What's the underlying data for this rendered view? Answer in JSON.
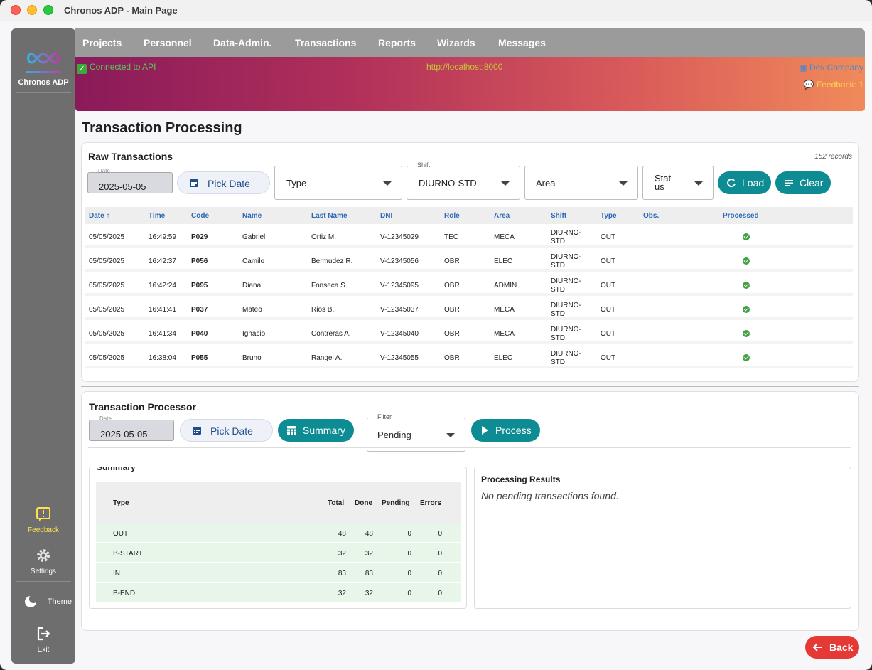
{
  "window": {
    "title": "Chronos ADP - Main Page"
  },
  "sidebar": {
    "brand": "Chronos ADP",
    "items": [
      {
        "label": "Feedback",
        "icon": "feedback-icon"
      },
      {
        "label": "Settings",
        "icon": "gear-icon"
      },
      {
        "label": "Theme",
        "icon": "moon-icon"
      },
      {
        "label": "Exit",
        "icon": "exit-icon"
      }
    ]
  },
  "nav": {
    "items": [
      "Projects",
      "Personnel",
      "Data-Admin.",
      "Transactions",
      "Reports",
      "Wizards",
      "Messages"
    ]
  },
  "banner": {
    "status": "Connected to API",
    "url": "http://localhost:8000",
    "company": "Dev Company",
    "feedback": "Feedback: 1"
  },
  "page": {
    "title": "Transaction Processing"
  },
  "raw": {
    "title": "Raw Transactions",
    "records": "152 records",
    "date_label": "Date",
    "date_value": "2025-05-05",
    "pick_date": "Pick Date",
    "type_value": "Type",
    "shift_label": "Shift",
    "shift_value": "DIURNO-STD -",
    "area_value": "Area",
    "status_value": "Stat us",
    "load": "Load",
    "clear": "Clear",
    "columns": [
      "Date ↑",
      "Time",
      "Code",
      "Name",
      "Last Name",
      "DNI",
      "Role",
      "Area",
      "Shift",
      "Type",
      "Obs.",
      "Processed"
    ],
    "rows": [
      {
        "date": "05/05/2025",
        "time": "16:49:59",
        "code": "P029",
        "name": "Gabriel",
        "last": "Ortiz M.",
        "dni": "V-12345029",
        "role": "TEC",
        "area": "MECA",
        "shift": "DIURNO-STD",
        "type": "OUT"
      },
      {
        "date": "05/05/2025",
        "time": "16:42:37",
        "code": "P056",
        "name": "Camilo",
        "last": "Bermudez R.",
        "dni": "V-12345056",
        "role": "OBR",
        "area": "ELEC",
        "shift": "DIURNO-STD",
        "type": "OUT"
      },
      {
        "date": "05/05/2025",
        "time": "16:42:24",
        "code": "P095",
        "name": "Diana",
        "last": "Fonseca S.",
        "dni": "V-12345095",
        "role": "OBR",
        "area": "ADMIN",
        "shift": "DIURNO-STD",
        "type": "OUT"
      },
      {
        "date": "05/05/2025",
        "time": "16:41:41",
        "code": "P037",
        "name": "Mateo",
        "last": "Rios B.",
        "dni": "V-12345037",
        "role": "OBR",
        "area": "MECA",
        "shift": "DIURNO-STD",
        "type": "OUT"
      },
      {
        "date": "05/05/2025",
        "time": "16:41:34",
        "code": "P040",
        "name": "Ignacio",
        "last": "Contreras A.",
        "dni": "V-12345040",
        "role": "OBR",
        "area": "MECA",
        "shift": "DIURNO-STD",
        "type": "OUT"
      },
      {
        "date": "05/05/2025",
        "time": "16:38:04",
        "code": "P055",
        "name": "Bruno",
        "last": "Rangel A.",
        "dni": "V-12345055",
        "role": "OBR",
        "area": "ELEC",
        "shift": "DIURNO-STD",
        "type": "OUT"
      }
    ]
  },
  "processor": {
    "title": "Transaction Processor",
    "date_label": "Date",
    "date_value": "2025-05-05",
    "pick_date": "Pick Date",
    "summary": "Summary",
    "filter_label": "Filter",
    "filter_value": "Pending",
    "process": "Process",
    "summary_title": "Summary",
    "summary_columns": [
      "Type",
      "Total",
      "Done",
      "Pending",
      "Errors"
    ],
    "summary_rows": [
      {
        "type": "OUT",
        "total": "48",
        "done": "48",
        "pending": "0",
        "errors": "0"
      },
      {
        "type": "B-START",
        "total": "32",
        "done": "32",
        "pending": "0",
        "errors": "0"
      },
      {
        "type": "IN",
        "total": "83",
        "done": "83",
        "pending": "0",
        "errors": "0"
      },
      {
        "type": "B-END",
        "total": "32",
        "done": "32",
        "pending": "0",
        "errors": "0"
      }
    ],
    "results_title": "Processing Results",
    "results_msg": "No pending transactions found."
  },
  "back": "Back",
  "colors": {
    "accent": "#0e8c93",
    "danger": "#e53935",
    "success": "#43a047",
    "link": "#2b68b8"
  }
}
